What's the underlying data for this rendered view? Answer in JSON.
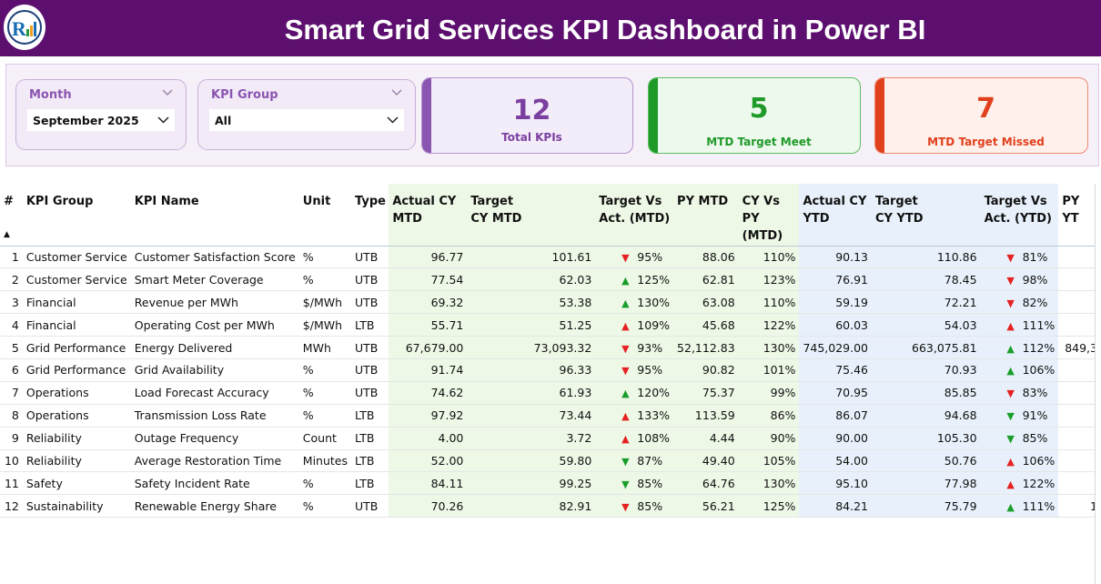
{
  "header": {
    "title": "Smart Grid Services KPI Dashboard in Power BI",
    "logo_icon": "rk-logo-icon"
  },
  "filters": {
    "month": {
      "label": "Month",
      "value": "September 2025"
    },
    "kpi_group": {
      "label": "KPI Group",
      "value": "All"
    }
  },
  "cards": {
    "total": {
      "value": "12",
      "label": "Total KPIs",
      "color": "#7b3fa0"
    },
    "meet": {
      "value": "5",
      "label": "MTD Target Meet",
      "color": "#1f9a28"
    },
    "missed": {
      "value": "7",
      "label": "MTD Target Missed",
      "color": "#e0401c"
    }
  },
  "table": {
    "columns": {
      "idx": "#",
      "group": "KPI Group",
      "name": "KPI Name",
      "unit": "Unit",
      "type": "Type",
      "actual_mtd": "Actual CY MTD",
      "target_mtd": "Target CY MTD",
      "tva_mtd": "Target Vs Act. (MTD)",
      "py_mtd": "PY MTD",
      "cvp_mtd": "CY Vs PY (MTD)",
      "actual_ytd": "Actual CY YTD",
      "target_ytd": "Target CY YTD",
      "tva_ytd": "Target Vs Act. (YTD)",
      "py_ytd": "PY YT"
    },
    "rows": [
      {
        "idx": "1",
        "group": "Customer Service",
        "name": "Customer Satisfaction Score",
        "unit": "%",
        "type": "UTB",
        "actual_mtd": "96.77",
        "target_mtd": "101.61",
        "arrow_mtd": "down",
        "tva_mtd": "95%",
        "py_mtd": "88.06",
        "cvp_mtd": "110%",
        "actual_ytd": "90.13",
        "target_ytd": "110.86",
        "arrow_ytd": "down",
        "tva_ytd": "81%",
        "py_ytd": ""
      },
      {
        "idx": "2",
        "group": "Customer Service",
        "name": "Smart Meter Coverage",
        "unit": "%",
        "type": "UTB",
        "actual_mtd": "77.54",
        "target_mtd": "62.03",
        "arrow_mtd": "up",
        "tva_mtd": "125%",
        "py_mtd": "62.81",
        "cvp_mtd": "123%",
        "actual_ytd": "76.91",
        "target_ytd": "78.45",
        "arrow_ytd": "down",
        "tva_ytd": "98%",
        "py_ytd": ""
      },
      {
        "idx": "3",
        "group": "Financial",
        "name": "Revenue per MWh",
        "unit": "$/MWh",
        "type": "UTB",
        "actual_mtd": "69.32",
        "target_mtd": "53.38",
        "arrow_mtd": "up",
        "tva_mtd": "130%",
        "py_mtd": "63.08",
        "cvp_mtd": "110%",
        "actual_ytd": "59.19",
        "target_ytd": "72.21",
        "arrow_ytd": "down",
        "tva_ytd": "82%",
        "py_ytd": ""
      },
      {
        "idx": "4",
        "group": "Financial",
        "name": "Operating Cost per MWh",
        "unit": "$/MWh",
        "type": "LTB",
        "actual_mtd": "55.71",
        "target_mtd": "51.25",
        "arrow_mtd": "upred",
        "tva_mtd": "109%",
        "py_mtd": "45.68",
        "cvp_mtd": "122%",
        "actual_ytd": "60.03",
        "target_ytd": "54.03",
        "arrow_ytd": "upred",
        "tva_ytd": "111%",
        "py_ytd": ""
      },
      {
        "idx": "5",
        "group": "Grid Performance",
        "name": "Energy Delivered",
        "unit": "MWh",
        "type": "UTB",
        "actual_mtd": "67,679.00",
        "target_mtd": "73,093.32",
        "arrow_mtd": "down",
        "tva_mtd": "93%",
        "py_mtd": "52,112.83",
        "cvp_mtd": "130%",
        "actual_ytd": "745,029.00",
        "target_ytd": "663,075.81",
        "arrow_ytd": "up",
        "tva_ytd": "112%",
        "py_ytd": "849,3"
      },
      {
        "idx": "6",
        "group": "Grid Performance",
        "name": "Grid Availability",
        "unit": "%",
        "type": "UTB",
        "actual_mtd": "91.74",
        "target_mtd": "96.33",
        "arrow_mtd": "down",
        "tva_mtd": "95%",
        "py_mtd": "90.82",
        "cvp_mtd": "101%",
        "actual_ytd": "75.46",
        "target_ytd": "70.93",
        "arrow_ytd": "up",
        "tva_ytd": "106%",
        "py_ytd": ""
      },
      {
        "idx": "7",
        "group": "Operations",
        "name": "Load Forecast Accuracy",
        "unit": "%",
        "type": "UTB",
        "actual_mtd": "74.62",
        "target_mtd": "61.93",
        "arrow_mtd": "up",
        "tva_mtd": "120%",
        "py_mtd": "75.37",
        "cvp_mtd": "99%",
        "actual_ytd": "70.95",
        "target_ytd": "85.85",
        "arrow_ytd": "down",
        "tva_ytd": "83%",
        "py_ytd": ""
      },
      {
        "idx": "8",
        "group": "Operations",
        "name": "Transmission Loss Rate",
        "unit": "%",
        "type": "LTB",
        "actual_mtd": "97.92",
        "target_mtd": "73.44",
        "arrow_mtd": "upred",
        "tva_mtd": "133%",
        "py_mtd": "113.59",
        "cvp_mtd": "86%",
        "actual_ytd": "86.07",
        "target_ytd": "94.68",
        "arrow_ytd": "downgreen",
        "tva_ytd": "91%",
        "py_ytd": ""
      },
      {
        "idx": "9",
        "group": "Reliability",
        "name": "Outage Frequency",
        "unit": "Count",
        "type": "LTB",
        "actual_mtd": "4.00",
        "target_mtd": "3.72",
        "arrow_mtd": "upred",
        "tva_mtd": "108%",
        "py_mtd": "4.44",
        "cvp_mtd": "90%",
        "actual_ytd": "90.00",
        "target_ytd": "105.30",
        "arrow_ytd": "downgreen",
        "tva_ytd": "85%",
        "py_ytd": ""
      },
      {
        "idx": "10",
        "group": "Reliability",
        "name": "Average Restoration Time",
        "unit": "Minutes",
        "type": "LTB",
        "actual_mtd": "52.00",
        "target_mtd": "59.80",
        "arrow_mtd": "downgreen",
        "tva_mtd": "87%",
        "py_mtd": "49.40",
        "cvp_mtd": "105%",
        "actual_ytd": "54.00",
        "target_ytd": "50.76",
        "arrow_ytd": "upred",
        "tva_ytd": "106%",
        "py_ytd": ""
      },
      {
        "idx": "11",
        "group": "Safety",
        "name": "Safety Incident Rate",
        "unit": "%",
        "type": "LTB",
        "actual_mtd": "84.11",
        "target_mtd": "99.25",
        "arrow_mtd": "downgreen",
        "tva_mtd": "85%",
        "py_mtd": "64.76",
        "cvp_mtd": "130%",
        "actual_ytd": "95.10",
        "target_ytd": "77.98",
        "arrow_ytd": "upred",
        "tva_ytd": "122%",
        "py_ytd": ""
      },
      {
        "idx": "12",
        "group": "Sustainability",
        "name": "Renewable Energy Share",
        "unit": "%",
        "type": "UTB",
        "actual_mtd": "70.26",
        "target_mtd": "82.91",
        "arrow_mtd": "down",
        "tva_mtd": "85%",
        "py_mtd": "56.21",
        "cvp_mtd": "125%",
        "actual_ytd": "84.21",
        "target_ytd": "75.79",
        "arrow_ytd": "up",
        "tva_ytd": "111%",
        "py_ytd": "1"
      }
    ]
  }
}
